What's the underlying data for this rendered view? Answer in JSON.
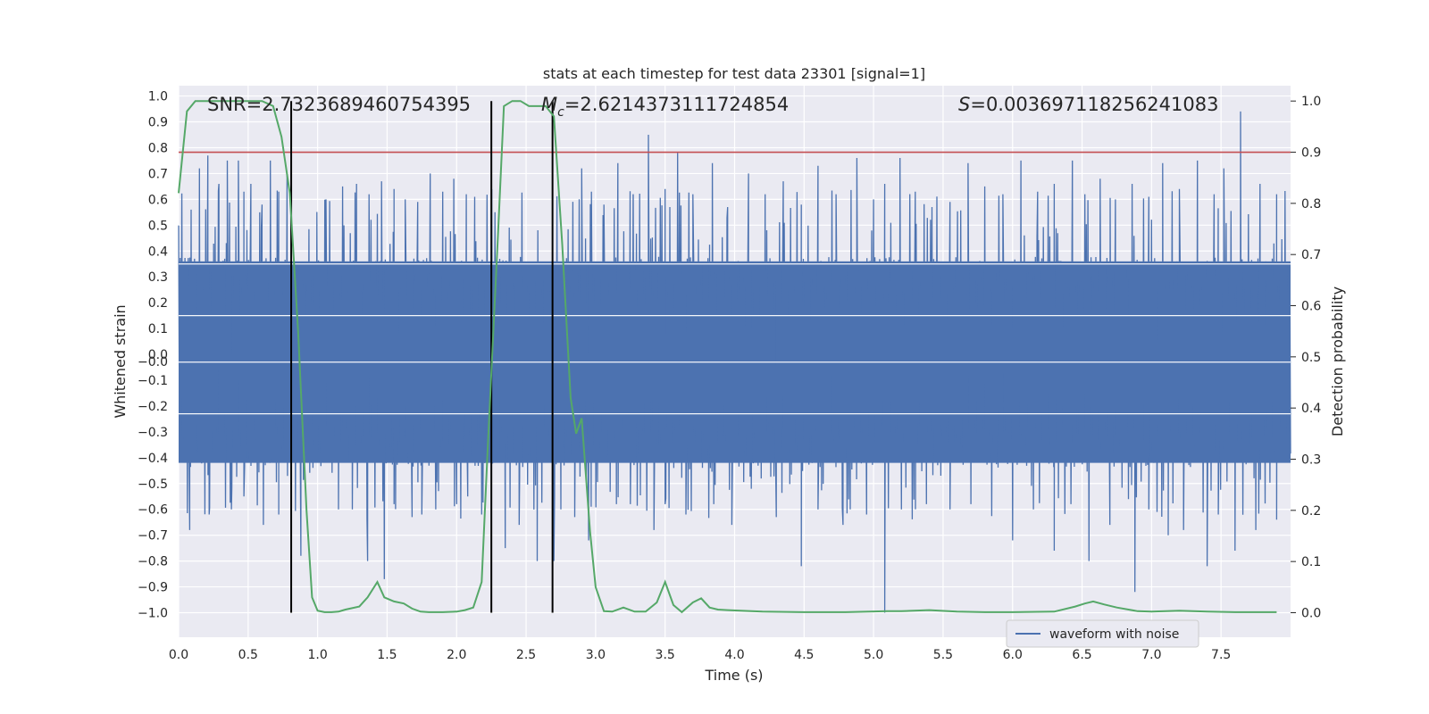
{
  "colors": {
    "background": "#eaeaf2",
    "grid": "#ffffff",
    "waveform": "#4c72b0",
    "probability": "#55a868",
    "threshold": "#c44e52",
    "markers": "#000000"
  },
  "chart_data": {
    "type": "line",
    "title": "stats at each timestep for test data 23301 [signal=1]",
    "xlabel": "Time (s)",
    "ylabel": "Whitened strain",
    "y2label": "Detection probability",
    "xlim": [
      0.0,
      8.0
    ],
    "ylim": [
      -1.095,
      1.04
    ],
    "y2lim": [
      -0.048,
      1.03
    ],
    "xticks": [
      "0.0",
      "0.5",
      "1.0",
      "1.5",
      "2.0",
      "2.5",
      "3.0",
      "3.5",
      "4.0",
      "4.5",
      "5.0",
      "5.5",
      "6.0",
      "6.5",
      "7.0",
      "7.5"
    ],
    "yticks": [
      "1.0",
      "0.9",
      "0.8",
      "0.7",
      "0.6",
      "0.5",
      "0.4",
      "0.3",
      "0.2",
      "0.1",
      "0.0",
      "-0.0",
      "-0.1",
      "-0.2",
      "-0.3",
      "-0.4",
      "-0.5",
      "-0.6",
      "-0.7",
      "-0.8",
      "-0.9",
      "-1.0"
    ],
    "ytick_values": [
      1.0,
      0.9,
      0.8,
      0.7,
      0.6,
      0.5,
      0.4,
      0.3,
      0.2,
      0.1,
      0.0,
      -0.0,
      -0.1,
      -0.2,
      -0.3,
      -0.4,
      -0.5,
      -0.6,
      -0.7,
      -0.8,
      -0.9,
      -1.0
    ],
    "y2ticks": [
      "1.0",
      "0.9",
      "0.8",
      "0.7",
      "0.6",
      "0.5",
      "0.4",
      "0.3",
      "0.2",
      "0.1",
      "0.0"
    ],
    "annotations": {
      "snr": "SNR=2.7323689460754395",
      "mc_symbol": "M",
      "mc_sub": "c",
      "mc_value": "=2.6214373111724854",
      "s_symbol": "S",
      "s_value": "=0.003697118256241083"
    },
    "legend": {
      "label": "waveform with noise",
      "position": "lower-right"
    },
    "series": [
      {
        "name": "waveform with noise",
        "axis": "left",
        "description": "dense noisy whitened strain, sampled over 0–8 s",
        "band_upper": 0.36,
        "band_lower": -0.42,
        "peak_times": [
          0.09,
          0.15,
          0.21,
          0.29,
          0.35,
          0.43,
          0.47,
          0.52,
          0.6,
          0.66,
          0.72,
          0.78,
          1.06,
          1.18,
          1.28,
          1.37,
          1.46,
          1.55,
          1.63,
          1.72,
          1.81,
          1.9,
          1.98,
          2.07,
          2.13,
          2.9,
          2.97,
          3.06,
          3.16,
          3.27,
          3.38,
          3.5,
          3.59,
          3.7,
          3.84,
          3.95,
          4.1,
          4.22,
          4.35,
          4.48,
          4.6,
          4.73,
          4.88,
          5.0,
          5.08,
          5.19,
          5.3,
          5.42,
          5.55,
          5.68,
          5.8,
          5.93,
          6.06,
          6.18,
          6.3,
          6.43,
          6.52,
          6.63,
          6.74,
          6.86,
          6.98,
          7.08,
          7.2,
          7.33,
          7.45,
          7.52,
          7.64,
          7.78,
          7.9
        ],
        "peak_values": [
          0.56,
          0.72,
          0.77,
          0.66,
          0.75,
          0.75,
          0.63,
          0.66,
          0.58,
          0.75,
          0.63,
          0.7,
          0.6,
          0.65,
          0.66,
          0.62,
          0.67,
          0.64,
          0.6,
          0.59,
          0.7,
          0.63,
          0.68,
          0.62,
          0.61,
          0.72,
          0.63,
          0.58,
          0.74,
          0.62,
          0.85,
          0.64,
          0.78,
          0.62,
          0.74,
          0.57,
          0.7,
          0.62,
          0.67,
          0.58,
          0.73,
          0.62,
          0.76,
          0.6,
          0.66,
          0.76,
          0.63,
          0.57,
          0.59,
          0.74,
          0.65,
          0.62,
          0.75,
          0.63,
          0.66,
          0.75,
          0.62,
          0.68,
          0.6,
          0.66,
          0.61,
          0.74,
          0.64,
          0.75,
          0.62,
          0.72,
          0.94,
          0.66,
          0.62
        ],
        "trough_times": [
          0.08,
          0.22,
          0.38,
          0.47,
          0.61,
          0.72,
          0.88,
          1.15,
          1.25,
          1.36,
          1.48,
          1.55,
          1.68,
          1.75,
          1.85,
          2.0,
          2.08,
          2.18,
          2.35,
          2.45,
          2.58,
          2.7,
          2.75,
          2.85,
          2.95,
          3.15,
          3.25,
          3.42,
          3.5,
          3.65,
          3.85,
          3.98,
          4.12,
          4.3,
          4.48,
          4.6,
          4.78,
          4.95,
          5.08,
          5.2,
          5.38,
          5.55,
          5.7,
          5.85,
          6.0,
          6.15,
          6.3,
          6.42,
          6.55,
          6.7,
          6.88,
          6.98,
          7.12,
          7.23,
          7.4,
          7.48,
          7.6,
          7.75,
          7.9
        ],
        "trough_values": [
          -0.68,
          -0.62,
          -0.6,
          -0.55,
          -0.66,
          -0.62,
          -0.78,
          -0.6,
          -0.6,
          -0.8,
          -0.87,
          -0.58,
          -0.63,
          -0.62,
          -0.6,
          -0.58,
          -0.55,
          -0.62,
          -0.75,
          -0.66,
          -0.8,
          -0.8,
          -0.6,
          -0.63,
          -0.72,
          -0.58,
          -0.58,
          -0.68,
          -0.58,
          -0.62,
          -0.58,
          -0.66,
          -0.52,
          -0.63,
          -0.82,
          -0.6,
          -0.66,
          -0.62,
          -1.0,
          -0.6,
          -0.58,
          -0.6,
          -0.58,
          -0.62,
          -0.72,
          -0.6,
          -0.76,
          -0.58,
          -0.8,
          -0.66,
          -0.92,
          -0.6,
          -0.7,
          -0.68,
          -0.82,
          -0.62,
          -0.76,
          -0.68,
          -0.64
        ]
      },
      {
        "name": "detection probability",
        "axis": "right",
        "x": [
          0.0,
          0.06,
          0.12,
          0.2,
          0.3,
          0.4,
          0.5,
          0.6,
          0.68,
          0.74,
          0.8,
          0.86,
          0.92,
          0.96,
          1.0,
          1.05,
          1.1,
          1.15,
          1.2,
          1.3,
          1.36,
          1.43,
          1.48,
          1.55,
          1.62,
          1.68,
          1.74,
          1.8,
          1.9,
          2.0,
          2.06,
          2.12,
          2.18,
          2.22,
          2.3,
          2.34,
          2.4,
          2.46,
          2.52,
          2.58,
          2.64,
          2.7,
          2.76,
          2.82,
          2.86,
          2.9,
          2.96,
          3.0,
          3.06,
          3.12,
          3.2,
          3.28,
          3.36,
          3.44,
          3.5,
          3.56,
          3.62,
          3.7,
          3.76,
          3.82,
          3.88,
          3.95,
          4.2,
          4.5,
          4.8,
          5.1,
          5.2,
          5.4,
          5.6,
          5.8,
          6.0,
          6.3,
          6.45,
          6.52,
          6.58,
          6.66,
          6.75,
          6.9,
          7.0,
          7.2,
          7.4,
          7.6,
          7.9
        ],
        "values": [
          0.82,
          0.98,
          1.0,
          1.0,
          1.0,
          1.0,
          1.0,
          1.0,
          0.99,
          0.93,
          0.82,
          0.55,
          0.2,
          0.03,
          0.004,
          0.001,
          0.001,
          0.002,
          0.006,
          0.012,
          0.03,
          0.06,
          0.03,
          0.022,
          0.018,
          0.008,
          0.002,
          0.001,
          0.001,
          0.002,
          0.005,
          0.01,
          0.06,
          0.3,
          0.75,
          0.99,
          1.0,
          1.0,
          0.99,
          0.99,
          0.99,
          0.97,
          0.72,
          0.42,
          0.35,
          0.38,
          0.16,
          0.05,
          0.003,
          0.002,
          0.01,
          0.002,
          0.002,
          0.02,
          0.06,
          0.015,
          0.001,
          0.02,
          0.028,
          0.01,
          0.006,
          0.005,
          0.002,
          0.001,
          0.001,
          0.003,
          0.003,
          0.005,
          0.002,
          0.001,
          0.001,
          0.002,
          0.012,
          0.018,
          0.022,
          0.016,
          0.01,
          0.003,
          0.002,
          0.004,
          0.002,
          0.001,
          0.001
        ]
      }
    ],
    "threshold": {
      "axis": "right",
      "value": 0.9
    },
    "vertical_markers": [
      0.81,
      2.25,
      2.69
    ]
  }
}
